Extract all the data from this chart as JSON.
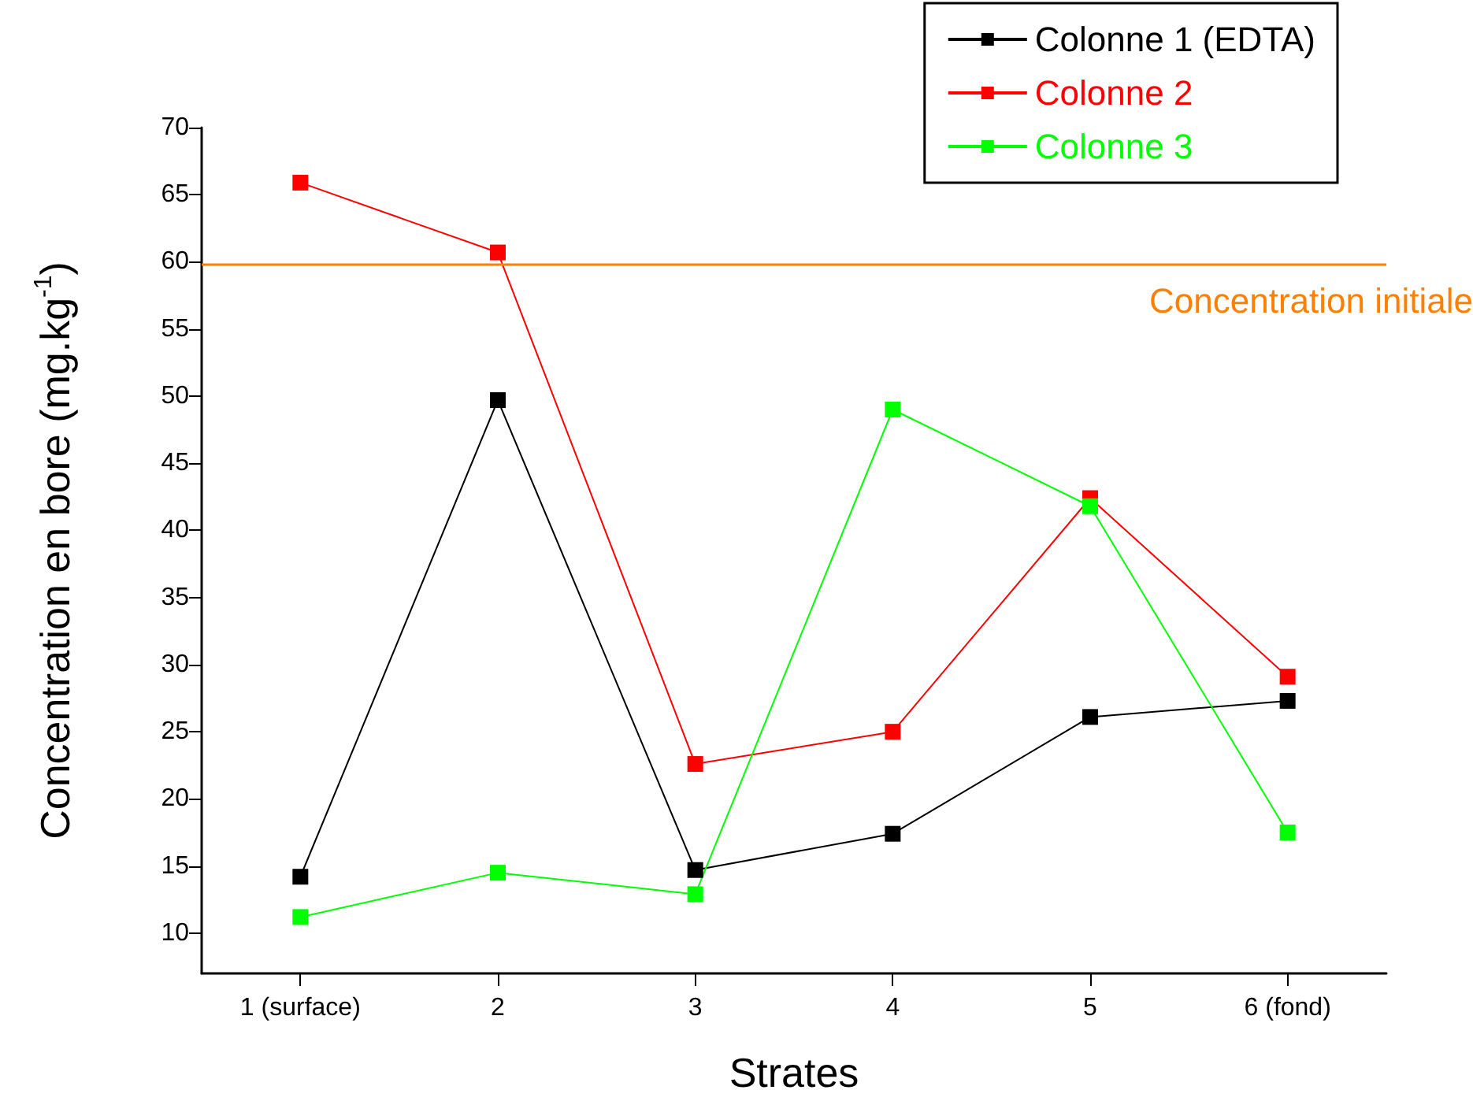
{
  "chart_data": {
    "type": "line",
    "xlabel": "Strates",
    "ylabel": "Concentration en bore (mg.kg$^{-1}$)",
    "categories": [
      "1 (surface)",
      "2",
      "3",
      "4",
      "5",
      "6 (fond)"
    ],
    "series": [
      {
        "name": "Colonne 1 (EDTA)",
        "color": "#000000",
        "values": [
          14.2,
          49.7,
          14.7,
          17.4,
          26.1,
          27.3
        ]
      },
      {
        "name": "Colonne 2",
        "color": "#ff0000",
        "values": [
          65.9,
          60.7,
          22.6,
          25.0,
          42.4,
          29.1
        ]
      },
      {
        "name": "Colonne 3",
        "color": "#00ff00",
        "values": [
          11.2,
          14.5,
          12.9,
          49.0,
          41.8,
          17.5
        ]
      }
    ],
    "ref_lines": [
      {
        "axis": "y",
        "value": 59.8,
        "label": "Concentration initiale",
        "color": "#ff8000"
      }
    ],
    "ylim": [
      7,
      70
    ],
    "yticks": [
      10,
      15,
      20,
      25,
      30,
      35,
      40,
      45,
      50,
      55,
      60,
      65,
      70
    ],
    "grid": false,
    "legend": "top right",
    "marker": "square",
    "line_style": "solid"
  }
}
